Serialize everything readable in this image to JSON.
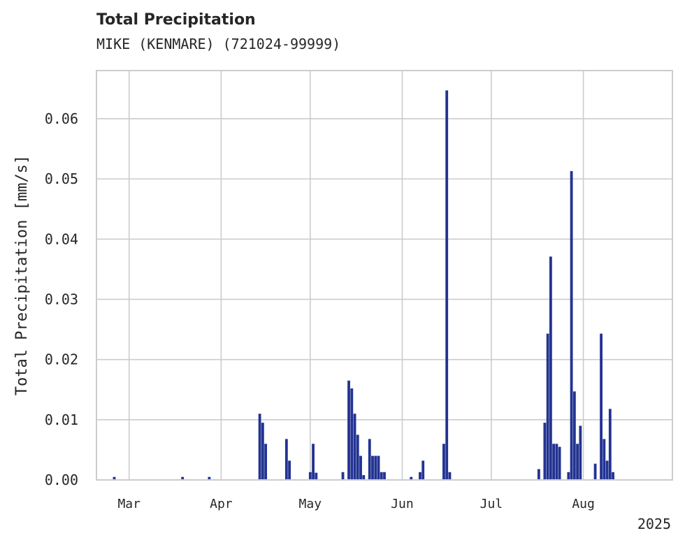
{
  "chart_data": {
    "type": "bar",
    "title": "Total Precipitation",
    "subtitle": "MIKE (KENMARE) (721024-99999)",
    "ylabel": "Total Precipitation [mm/s]",
    "xlabel": "",
    "year_label": "2025",
    "xlim": [
      "2025-02-18",
      "2025-08-31"
    ],
    "ylim": [
      0,
      0.068
    ],
    "x_ticks": [
      {
        "date": "2025-03-01",
        "label": "Mar"
      },
      {
        "date": "2025-04-01",
        "label": "Apr"
      },
      {
        "date": "2025-05-01",
        "label": "May"
      },
      {
        "date": "2025-06-01",
        "label": "Jun"
      },
      {
        "date": "2025-07-01",
        "label": "Jul"
      },
      {
        "date": "2025-08-01",
        "label": "Aug"
      }
    ],
    "y_ticks": [
      {
        "value": 0.0,
        "label": "0.00"
      },
      {
        "value": 0.01,
        "label": "0.01"
      },
      {
        "value": 0.02,
        "label": "0.02"
      },
      {
        "value": 0.03,
        "label": "0.03"
      },
      {
        "value": 0.04,
        "label": "0.04"
      },
      {
        "value": 0.05,
        "label": "0.05"
      },
      {
        "value": 0.06,
        "label": "0.06"
      }
    ],
    "grid": true,
    "bar_color": "#233391",
    "grid_color": "#cccccc",
    "frame_color": "#cccccc",
    "series": [
      {
        "x": [
          "2025-02-24",
          "2025-03-19",
          "2025-03-28",
          "2025-04-14",
          "2025-04-15",
          "2025-04-16",
          "2025-04-23",
          "2025-04-24",
          "2025-05-01",
          "2025-05-02",
          "2025-05-03",
          "2025-05-12",
          "2025-05-14",
          "2025-05-15",
          "2025-05-16",
          "2025-05-17",
          "2025-05-18",
          "2025-05-19",
          "2025-05-21",
          "2025-05-22",
          "2025-05-23",
          "2025-05-24",
          "2025-05-25",
          "2025-05-26",
          "2025-06-04",
          "2025-06-07",
          "2025-06-08",
          "2025-06-15",
          "2025-06-16",
          "2025-06-17",
          "2025-07-17",
          "2025-07-19",
          "2025-07-20",
          "2025-07-21",
          "2025-07-22",
          "2025-07-23",
          "2025-07-24",
          "2025-07-27",
          "2025-07-28",
          "2025-07-29",
          "2025-07-30",
          "2025-07-31",
          "2025-08-05",
          "2025-08-07",
          "2025-08-08",
          "2025-08-09",
          "2025-08-10",
          "2025-08-11"
        ],
        "values": [
          0.0005,
          0.0005,
          0.0005,
          0.011,
          0.0095,
          0.006,
          0.0068,
          0.0032,
          0.0013,
          0.006,
          0.0012,
          0.0013,
          0.0165,
          0.0152,
          0.011,
          0.0075,
          0.004,
          0.0008,
          0.0068,
          0.004,
          0.004,
          0.004,
          0.0013,
          0.0013,
          0.0005,
          0.0013,
          0.0032,
          0.006,
          0.0647,
          0.0013,
          0.0018,
          0.0095,
          0.0243,
          0.0371,
          0.006,
          0.006,
          0.0055,
          0.0013,
          0.0513,
          0.0147,
          0.006,
          0.009,
          0.0027,
          0.0243,
          0.0068,
          0.0032,
          0.0118,
          0.0013
        ]
      }
    ]
  }
}
